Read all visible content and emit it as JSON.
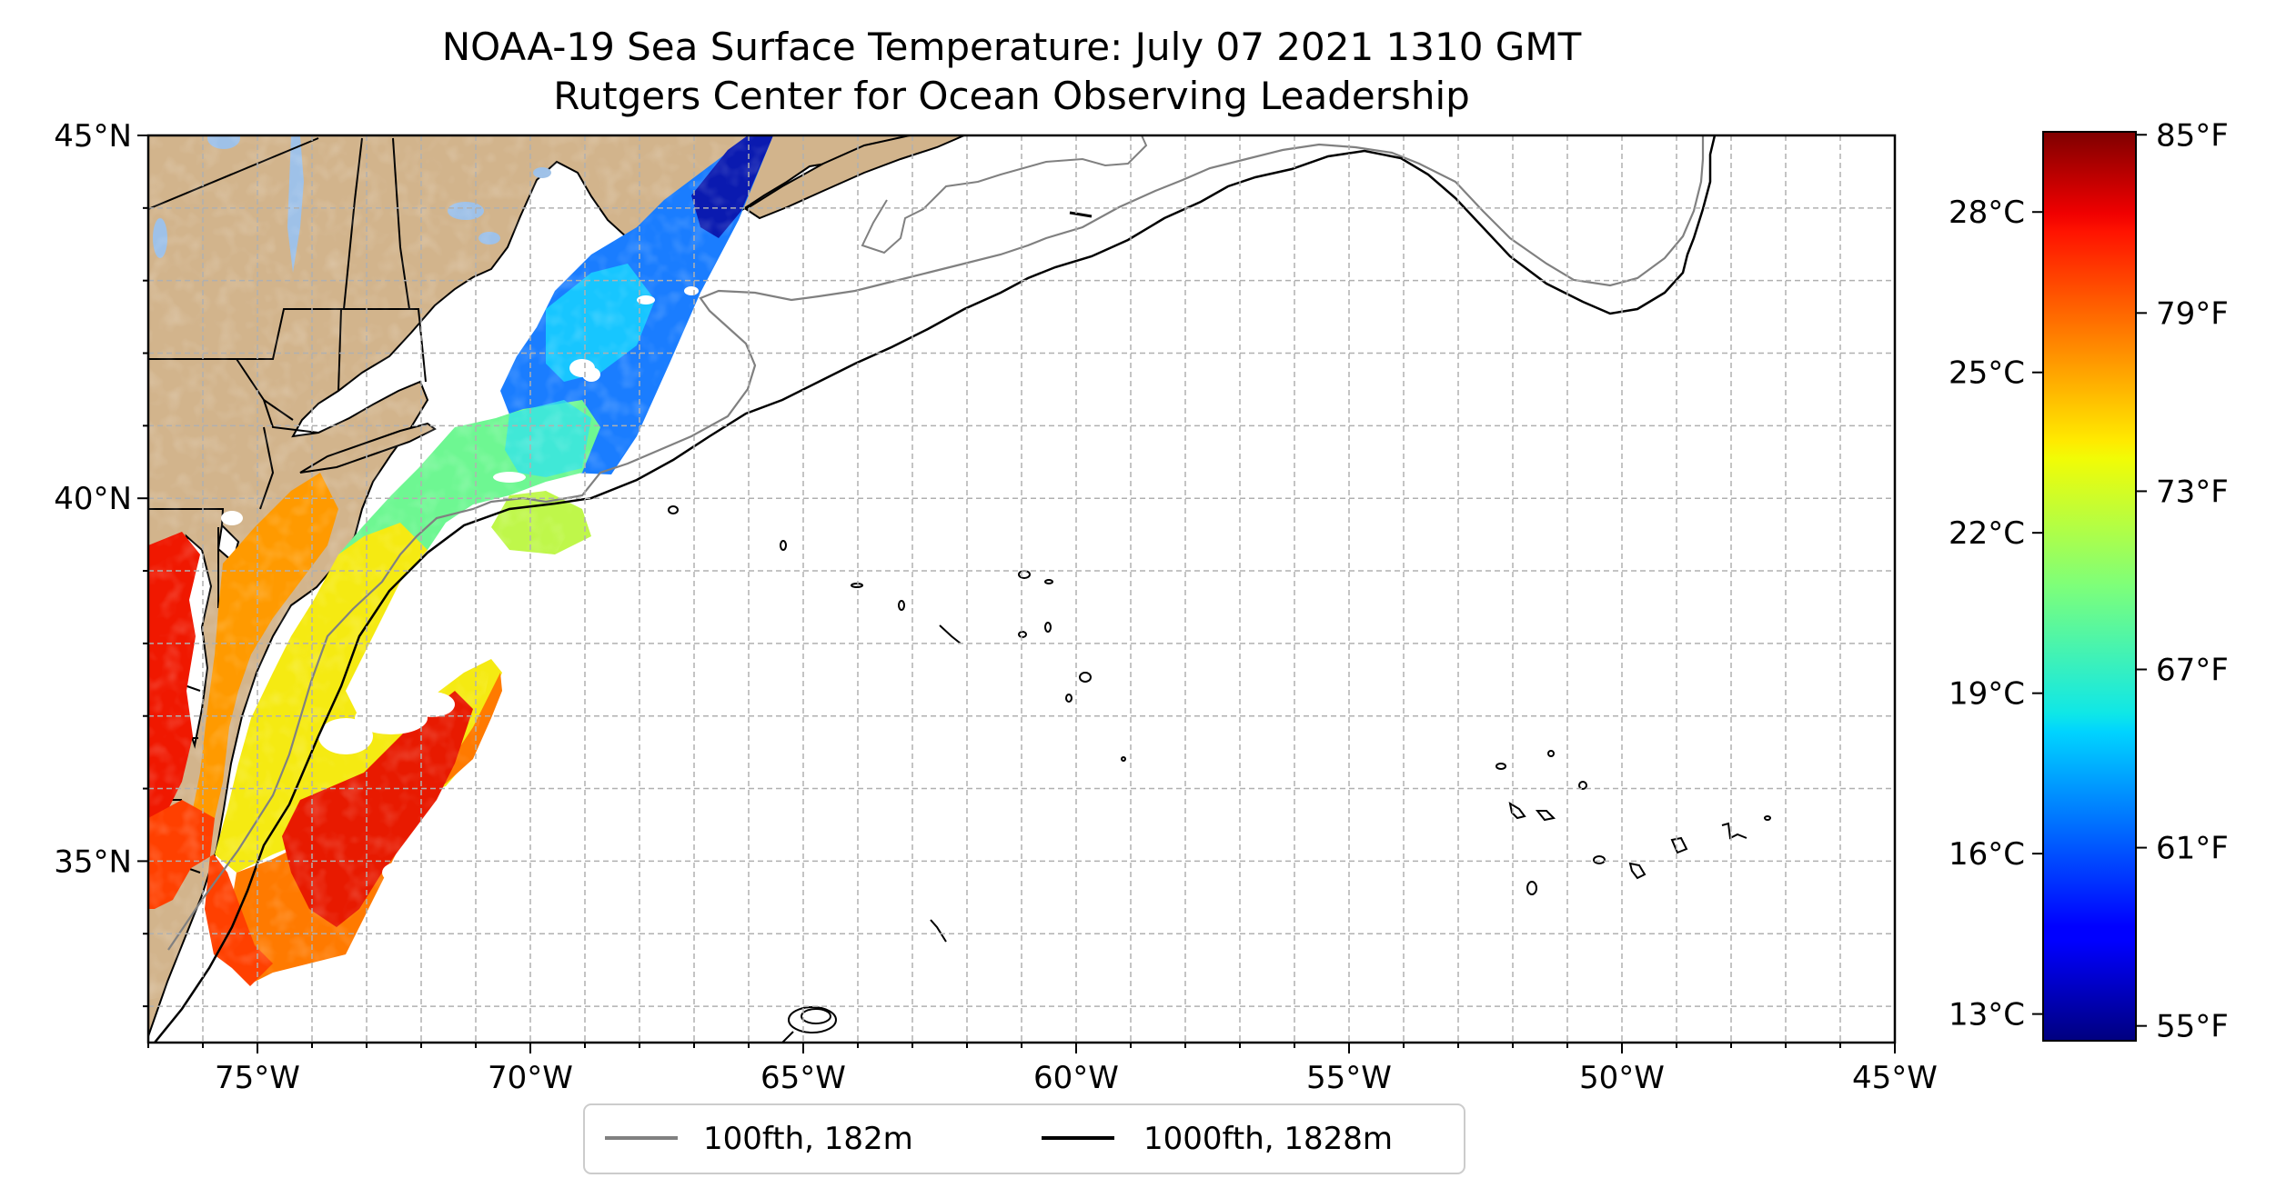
{
  "title": {
    "line1": "NOAA-19 Sea Surface Temperature: July 07 2021 1310 GMT",
    "line2": "Rutgers Center for Ocean Observing Leadership"
  },
  "map": {
    "lon_range": [
      -77,
      -45
    ],
    "lat_range": [
      32.5,
      45
    ],
    "lon_ticks": [
      {
        "value": -75,
        "label": "75°W"
      },
      {
        "value": -70,
        "label": "70°W"
      },
      {
        "value": -65,
        "label": "65°W"
      },
      {
        "value": -60,
        "label": "60°W"
      },
      {
        "value": -55,
        "label": "55°W"
      },
      {
        "value": -50,
        "label": "50°W"
      },
      {
        "value": -45,
        "label": "45°W"
      }
    ],
    "lat_ticks": [
      {
        "value": 35,
        "label": "35°N"
      },
      {
        "value": 40,
        "label": "40°N"
      },
      {
        "value": 45,
        "label": "45°N"
      }
    ],
    "gridlines": "dashed-grey",
    "land_color": "#d2b48c",
    "lake_color": "#9ec1e8",
    "isobath_100fth_color": "#808080",
    "isobath_1000fth_color": "#000000"
  },
  "legend": {
    "placement": "bottom-center",
    "items": [
      {
        "label": "100fth, 182m",
        "color": "#808080"
      },
      {
        "label": "1000fth, 1828m",
        "color": "#000000"
      }
    ]
  },
  "colorbar": {
    "colormap": "jet",
    "range_celsius": [
      12.5,
      29.5
    ],
    "celsius_ticks": [
      {
        "value": 13,
        "label": "13°C"
      },
      {
        "value": 16,
        "label": "16°C"
      },
      {
        "value": 19,
        "label": "19°C"
      },
      {
        "value": 22,
        "label": "22°C"
      },
      {
        "value": 25,
        "label": "25°C"
      },
      {
        "value": 28,
        "label": "28°C"
      }
    ],
    "fahrenheit_ticks": [
      {
        "value": 55,
        "label": "55°F"
      },
      {
        "value": 61,
        "label": "61°F"
      },
      {
        "value": 67,
        "label": "67°F"
      },
      {
        "value": 73,
        "label": "73°F"
      },
      {
        "value": 79,
        "label": "79°F"
      },
      {
        "value": 85,
        "label": "85°F"
      }
    ]
  }
}
